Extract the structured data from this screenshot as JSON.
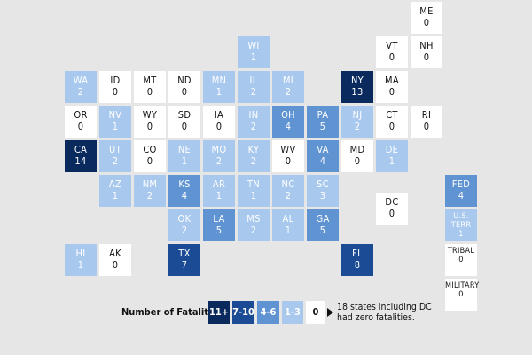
{
  "chart_data": {
    "type": "tile-map",
    "subtitle": "",
    "legend": {
      "title": "Number of Fatalities:",
      "bins": [
        {
          "label": "11+",
          "min": 11,
          "max": 99,
          "color": "#0a2a5e",
          "text_color": "#ffffff"
        },
        {
          "label": "7-10",
          "min": 7,
          "max": 10,
          "color": "#1b4b94",
          "text_color": "#ffffff"
        },
        {
          "label": "4-6",
          "min": 4,
          "max": 6,
          "color": "#5f93d1",
          "text_color": "#ffffff"
        },
        {
          "label": "1-3",
          "min": 1,
          "max": 3,
          "color": "#a8c8ee",
          "text_color": "#ffffff"
        },
        {
          "label": "0",
          "min": 0,
          "max": 0,
          "color": "#ffffff",
          "text_color": "#111111"
        }
      ],
      "note": "18 states including DC had zero fatalities."
    },
    "tiles": [
      {
        "abbr": "ME",
        "value": 0,
        "col": 11,
        "row": 0
      },
      {
        "abbr": "WI",
        "value": 1,
        "col": 6,
        "row": 1
      },
      {
        "abbr": "VT",
        "value": 0,
        "col": 10,
        "row": 1
      },
      {
        "abbr": "NH",
        "value": 0,
        "col": 11,
        "row": 1
      },
      {
        "abbr": "WA",
        "value": 2,
        "col": 1,
        "row": 2
      },
      {
        "abbr": "ID",
        "value": 0,
        "col": 2,
        "row": 2
      },
      {
        "abbr": "MT",
        "value": 0,
        "col": 3,
        "row": 2
      },
      {
        "abbr": "ND",
        "value": 0,
        "col": 4,
        "row": 2
      },
      {
        "abbr": "MN",
        "value": 1,
        "col": 5,
        "row": 2
      },
      {
        "abbr": "IL",
        "value": 2,
        "col": 6,
        "row": 2
      },
      {
        "abbr": "MI",
        "value": 2,
        "col": 7,
        "row": 2
      },
      {
        "abbr": "NY",
        "value": 13,
        "col": 9,
        "row": 2
      },
      {
        "abbr": "MA",
        "value": 0,
        "col": 10,
        "row": 2
      },
      {
        "abbr": "OR",
        "value": 0,
        "col": 1,
        "row": 3
      },
      {
        "abbr": "NV",
        "value": 1,
        "col": 2,
        "row": 3
      },
      {
        "abbr": "WY",
        "value": 0,
        "col": 3,
        "row": 3
      },
      {
        "abbr": "SD",
        "value": 0,
        "col": 4,
        "row": 3
      },
      {
        "abbr": "IA",
        "value": 0,
        "col": 5,
        "row": 3
      },
      {
        "abbr": "IN",
        "value": 2,
        "col": 6,
        "row": 3
      },
      {
        "abbr": "OH",
        "value": 4,
        "col": 7,
        "row": 3
      },
      {
        "abbr": "PA",
        "value": 5,
        "col": 8,
        "row": 3
      },
      {
        "abbr": "NJ",
        "value": 2,
        "col": 9,
        "row": 3
      },
      {
        "abbr": "CT",
        "value": 0,
        "col": 10,
        "row": 3
      },
      {
        "abbr": "RI",
        "value": 0,
        "col": 11,
        "row": 3
      },
      {
        "abbr": "CA",
        "value": 14,
        "col": 1,
        "row": 4
      },
      {
        "abbr": "UT",
        "value": 2,
        "col": 2,
        "row": 4
      },
      {
        "abbr": "CO",
        "value": 0,
        "col": 3,
        "row": 4
      },
      {
        "abbr": "NE",
        "value": 1,
        "col": 4,
        "row": 4
      },
      {
        "abbr": "MO",
        "value": 2,
        "col": 5,
        "row": 4
      },
      {
        "abbr": "KY",
        "value": 2,
        "col": 6,
        "row": 4
      },
      {
        "abbr": "WV",
        "value": 0,
        "col": 7,
        "row": 4
      },
      {
        "abbr": "VA",
        "value": 4,
        "col": 8,
        "row": 4
      },
      {
        "abbr": "MD",
        "value": 0,
        "col": 9,
        "row": 4
      },
      {
        "abbr": "DE",
        "value": 1,
        "col": 10,
        "row": 4
      },
      {
        "abbr": "AZ",
        "value": 1,
        "col": 2,
        "row": 5
      },
      {
        "abbr": "NM",
        "value": 2,
        "col": 3,
        "row": 5
      },
      {
        "abbr": "KS",
        "value": 4,
        "col": 4,
        "row": 5
      },
      {
        "abbr": "AR",
        "value": 1,
        "col": 5,
        "row": 5
      },
      {
        "abbr": "TN",
        "value": 1,
        "col": 6,
        "row": 5
      },
      {
        "abbr": "NC",
        "value": 2,
        "col": 7,
        "row": 5
      },
      {
        "abbr": "SC",
        "value": 3,
        "col": 8,
        "row": 5
      },
      {
        "abbr": "FED",
        "value": 4,
        "col": 12,
        "row": 5
      },
      {
        "abbr": "OK",
        "value": 2,
        "col": 4,
        "row": 6
      },
      {
        "abbr": "LA",
        "value": 5,
        "col": 5,
        "row": 6
      },
      {
        "abbr": "MS",
        "value": 2,
        "col": 6,
        "row": 6
      },
      {
        "abbr": "AL",
        "value": 1,
        "col": 7,
        "row": 6
      },
      {
        "abbr": "GA",
        "value": 5,
        "col": 8,
        "row": 6
      },
      {
        "abbr": "DC",
        "value": 0,
        "col": 10,
        "row": 5.5
      },
      {
        "abbr": "U.S. TERR",
        "value": 1,
        "col": 12,
        "row": 6,
        "small": true
      },
      {
        "abbr": "HI",
        "value": 1,
        "col": 1,
        "row": 7
      },
      {
        "abbr": "AK",
        "value": 0,
        "col": 2,
        "row": 7
      },
      {
        "abbr": "TX",
        "value": 7,
        "col": 4,
        "row": 7
      },
      {
        "abbr": "FL",
        "value": 8,
        "col": 9,
        "row": 7
      },
      {
        "abbr": "TRIBAL",
        "value": 0,
        "col": 12,
        "row": 7,
        "small": true
      },
      {
        "abbr": "MILITARY",
        "value": 0,
        "col": 12,
        "row": 8,
        "small": true
      }
    ]
  }
}
